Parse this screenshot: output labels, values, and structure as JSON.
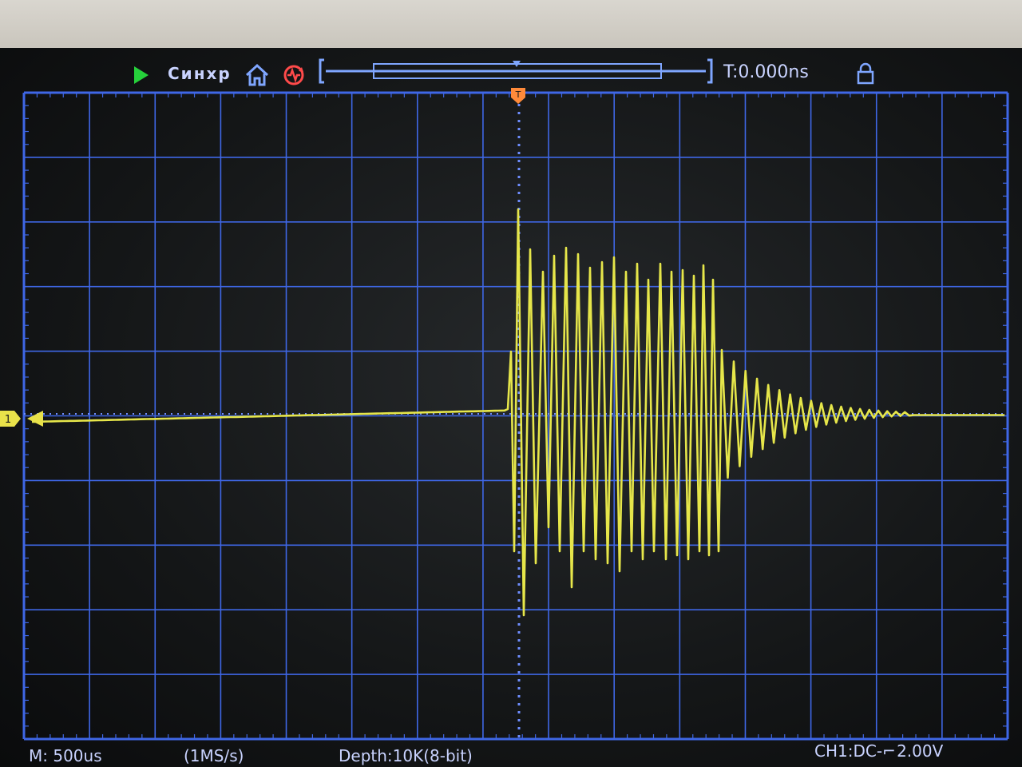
{
  "topbar": {
    "run_state_icon": "play-icon",
    "sync_label": "Синхр",
    "home_icon": "home-icon",
    "autoset_icon": "autoset-icon",
    "trigger_time": "T:0.000ns",
    "lock_icon": "lock-icon"
  },
  "statusbar": {
    "timebase": "M: 500us",
    "sample_rate": "(1MS/s)",
    "depth": "Depth:10K(8-bit)",
    "ch1": "CH1:DC-̲╱ 2.00V"
  },
  "ch1": {
    "marker": "1",
    "color": "#e9e24a"
  },
  "trigger_marker": "T",
  "colors": {
    "grid": "#3f67e6",
    "grid_dots": "#6f8eff",
    "trace": "#e6e64a",
    "text": "#c9d3ff",
    "run": "#26d13b",
    "autoset": "#ff4a4a",
    "trigger": "#ff8a3a"
  }
}
